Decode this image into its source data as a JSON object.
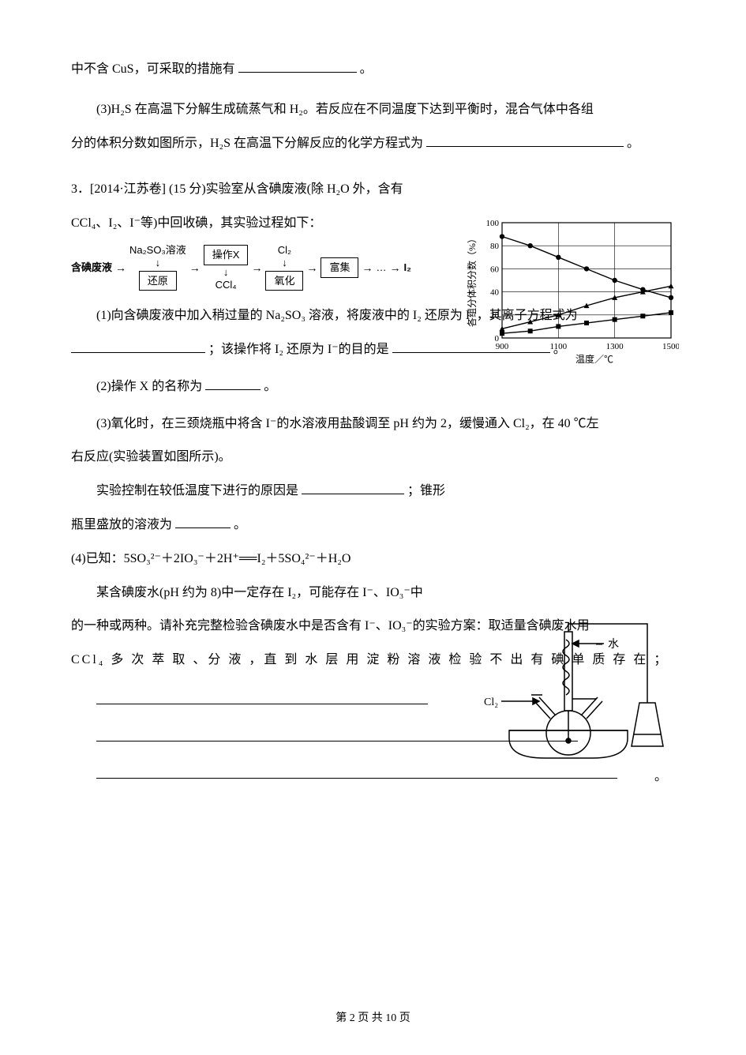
{
  "p_cus": "中不含 CuS，可采取的措施有",
  "p_cus_end": "。",
  "p_h2s_a": "(3)H₂S 在高温下分解生成硫蒸气和 H₂。若反应在不同温度下达到平衡时，混合气体中各组",
  "p_h2s_b": "分的体积分数如图所示，H₂S 在高温下分解反应的化学方程式为",
  "p_h2s_end": "。",
  "q3_intro_a": "3．[2014·江苏卷] (15 分)实验室从含碘废液(除 H₂O 外，含有",
  "q3_intro_b": "CCl₄、I₂、I⁻等)中回收碘，其实验过程如下：",
  "flow": {
    "start": "含碘废液",
    "top1": "Na₂SO₃溶液",
    "box1": "还原",
    "box2": "操作X",
    "bot2": "CCl₄",
    "top3": "Cl₂",
    "box3": "氧化",
    "box4": "富集",
    "dots": "…",
    "end": "I₂"
  },
  "chart": {
    "ylabel": "各组分体积分数（%）",
    "xlabel": "温度／℃",
    "ylim": [
      0,
      100
    ],
    "yticks": [
      0,
      20,
      40,
      60,
      80,
      100
    ],
    "xlim": [
      900,
      1500
    ],
    "xticks": [
      900,
      1100,
      1300,
      1500
    ],
    "grid_color": "#000000",
    "bg": "#ffffff",
    "series": [
      {
        "marker": "circle",
        "x": [
          900,
          1000,
          1100,
          1200,
          1300,
          1400,
          1500
        ],
        "y": [
          88,
          80,
          70,
          60,
          50,
          42,
          35
        ]
      },
      {
        "marker": "triangle",
        "x": [
          900,
          1000,
          1100,
          1200,
          1300,
          1400,
          1500
        ],
        "y": [
          8,
          14,
          20,
          28,
          35,
          40,
          45
        ]
      },
      {
        "marker": "square",
        "x": [
          900,
          1000,
          1100,
          1200,
          1300,
          1400,
          1500
        ],
        "y": [
          4,
          6,
          10,
          13,
          16,
          19,
          22
        ]
      }
    ]
  },
  "q3_1a": "(1)向含碘废液中加入稍过量的 Na₂SO₃ 溶液，将废液中的 I₂ 还原为 I⁻，其离子方程式为",
  "q3_1b": "；该操作将 I₂ 还原为 I⁻的目的是",
  "q3_1end": "。",
  "q3_2": "(2)操作 X 的名称为",
  "q3_2end": "。",
  "q3_3a": "(3)氧化时，在三颈烧瓶中将含 I⁻的水溶液用盐酸调至 pH 约为 2，缓慢通入 Cl₂，在 40 ℃左",
  "q3_3b": "右反应(实验装置如图所示)。",
  "q3_3c": "实验控制在较低温度下进行的原因是",
  "q3_3c_mid": "；锥形",
  "q3_3d": "瓶里盛放的溶液为",
  "q3_3d_end": "。",
  "q3_4a": "(4)已知：5SO₃²⁻＋2IO₃⁻＋2H⁺══I₂＋5SO₄²⁻＋H₂O",
  "q3_4b": "某含碘废水(pH 约为 8)中一定存在 I₂，可能存在 I⁻、IO₃⁻中",
  "q3_4c": "的一种或两种。请补充完整检验含碘废水中是否含有 I⁻、IO₃⁻的实验方案：取适量含碘废水用",
  "q3_4d": "CCl₄ 多 次 萃 取 、分 液 ，直 到 水 层 用 淀 粉 溶 液 检 验 不 出 有 碘 单 质 存 在 ；",
  "apparatus_labels": {
    "cl2": "Cl₂",
    "water": "水"
  },
  "footer_a": "第 ",
  "footer_pg": "2",
  "footer_b": " 页 共 ",
  "footer_total": "10",
  "footer_c": " 页",
  "blank_widths": {
    "cus": 150,
    "h2s": 250,
    "q31a": 170,
    "q31b": 200,
    "q32": 70,
    "q33c": 130,
    "q33d": 70
  }
}
